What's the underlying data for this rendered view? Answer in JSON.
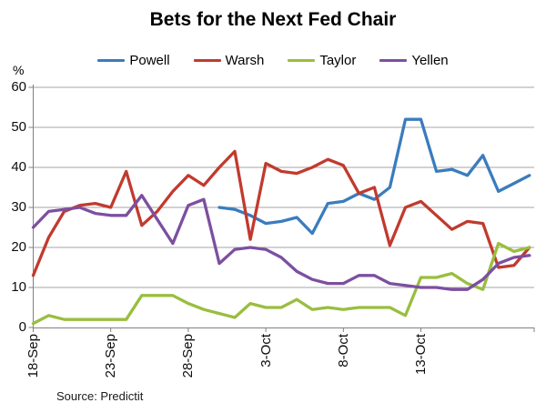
{
  "title": "Bets for the Next Fed Chair",
  "y_axis": {
    "unit_label": "%",
    "tick_labels": [
      "60",
      "50",
      "40",
      "30",
      "20",
      "10",
      "0"
    ]
  },
  "x_axis": {
    "tick_labels": [
      "18-Sep",
      "23-Sep",
      "28-Sep",
      "3-Oct",
      "8-Oct",
      "13-Oct"
    ],
    "tick_indices": [
      0,
      5,
      10,
      15,
      20,
      25
    ]
  },
  "source": "Source: Predictit",
  "colors": {
    "grid": "#a6a6a6",
    "axis": "#808080",
    "powell": "#3a7cbe",
    "warsh": "#c13a2e",
    "taylor": "#99be3f",
    "yellen": "#7c4fa0"
  },
  "chart_data": {
    "type": "line",
    "title": "Bets for the Next Fed Chair",
    "xlabel": "",
    "ylabel": "%",
    "ylim": [
      0,
      60
    ],
    "grid": true,
    "legend_position": "top",
    "x": [
      "18-Sep",
      "19-Sep",
      "20-Sep",
      "21-Sep",
      "22-Sep",
      "23-Sep",
      "24-Sep",
      "25-Sep",
      "26-Sep",
      "27-Sep",
      "28-Sep",
      "29-Sep",
      "30-Sep",
      "1-Oct",
      "2-Oct",
      "3-Oct",
      "4-Oct",
      "5-Oct",
      "6-Oct",
      "7-Oct",
      "8-Oct",
      "9-Oct",
      "10-Oct",
      "11-Oct",
      "12-Oct",
      "13-Oct",
      "14-Oct",
      "15-Oct",
      "16-Oct",
      "17-Oct",
      "18-Oct",
      "19-Oct",
      "20-Oct"
    ],
    "series": [
      {
        "name": "Powell",
        "color": "#3a7cbe",
        "values": [
          null,
          null,
          null,
          null,
          null,
          null,
          null,
          null,
          null,
          null,
          null,
          null,
          30,
          29.5,
          28,
          26,
          26.5,
          27.5,
          23.5,
          31,
          31.5,
          33.5,
          32,
          35,
          52,
          52,
          39,
          39.5,
          38,
          43,
          34,
          36,
          38
        ]
      },
      {
        "name": "Warsh",
        "color": "#c13a2e",
        "values": [
          13,
          22.5,
          29,
          30.5,
          31,
          30,
          39,
          25.5,
          29,
          34,
          38,
          35.5,
          40,
          44,
          22,
          41,
          39,
          38.5,
          40,
          42,
          40.5,
          33.5,
          35,
          20.5,
          30,
          31.5,
          28,
          24.5,
          26.5,
          26,
          15,
          15.5,
          20
        ]
      },
      {
        "name": "Taylor",
        "color": "#99be3f",
        "values": [
          1,
          3,
          2,
          2,
          2,
          2,
          2,
          8,
          8,
          8,
          6,
          4.5,
          3.5,
          2.5,
          6,
          5,
          5,
          7,
          4.5,
          5,
          4.5,
          5,
          5,
          5,
          3,
          12.5,
          12.5,
          13.5,
          11,
          9.5,
          21,
          19,
          20
        ]
      },
      {
        "name": "Yellen",
        "color": "#7c4fa0",
        "values": [
          25,
          29,
          29.5,
          30,
          28.5,
          28,
          28,
          33,
          27,
          21,
          30.5,
          32,
          16,
          19.5,
          20,
          19.5,
          17.5,
          14,
          12,
          11,
          11,
          13,
          13,
          11,
          10.5,
          10,
          10,
          9.5,
          9.5,
          12,
          16,
          17.5,
          18
        ]
      }
    ]
  }
}
